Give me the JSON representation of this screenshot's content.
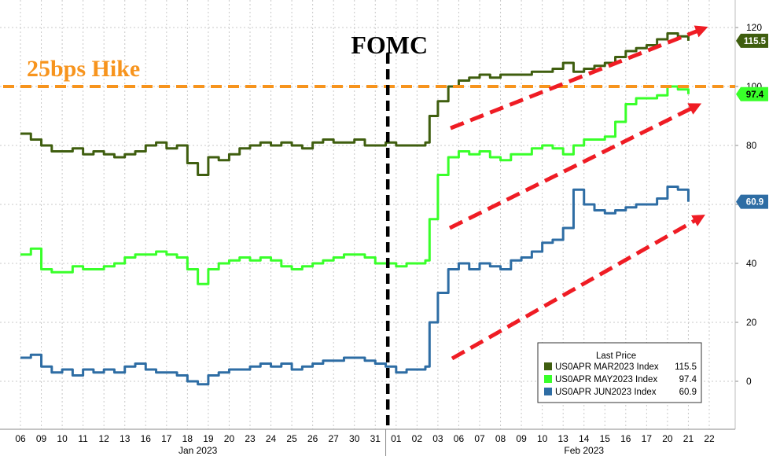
{
  "chart_data": {
    "type": "line",
    "ylim": [
      -12,
      126
    ],
    "y_ticks": [
      0,
      20,
      40,
      60,
      80,
      100,
      120
    ],
    "grid": true,
    "x_day_ticks": [
      "06",
      "09",
      "10",
      "11",
      "12",
      "13",
      "16",
      "17",
      "18",
      "19",
      "20",
      "23",
      "24",
      "25",
      "26",
      "27",
      "30",
      "31",
      "01",
      "02",
      "03",
      "06",
      "07",
      "08",
      "09",
      "10",
      "13",
      "14",
      "15",
      "16",
      "17",
      "20",
      "21",
      "22"
    ],
    "x_month_labels": [
      {
        "text": "Jan 2023",
        "at_index": 8.5
      },
      {
        "text": "Feb 2023",
        "at_index": 27
      }
    ],
    "month_divider_index": 17.5,
    "annotations": {
      "fomc": "FOMC",
      "fomc_index": 17.6,
      "hike_label": "25bps Hike",
      "hike_level": 100
    },
    "legend": {
      "title": "Last Price",
      "placement": "bottom-right"
    },
    "series": [
      {
        "name": "US0APR MAR2023 Index",
        "last": "115.5",
        "color": "#3f5e0f",
        "badge_text_color": "#ffffff",
        "points": [
          [
            0,
            84
          ],
          [
            0.5,
            82
          ],
          [
            1,
            80
          ],
          [
            1.5,
            78
          ],
          [
            2,
            78
          ],
          [
            2.5,
            79
          ],
          [
            3,
            77
          ],
          [
            3.5,
            78
          ],
          [
            4,
            77
          ],
          [
            4.5,
            76
          ],
          [
            5,
            77
          ],
          [
            5.5,
            78
          ],
          [
            6,
            80
          ],
          [
            6.5,
            81
          ],
          [
            7,
            79
          ],
          [
            7.5,
            80
          ],
          [
            8,
            74
          ],
          [
            8.5,
            70
          ],
          [
            9,
            76
          ],
          [
            9.5,
            75
          ],
          [
            10,
            77
          ],
          [
            10.5,
            79
          ],
          [
            11,
            80
          ],
          [
            11.5,
            81
          ],
          [
            12,
            80
          ],
          [
            12.5,
            81
          ],
          [
            13,
            80
          ],
          [
            13.5,
            79
          ],
          [
            14,
            81
          ],
          [
            14.5,
            82
          ],
          [
            15,
            81
          ],
          [
            15.5,
            81
          ],
          [
            16,
            82
          ],
          [
            16.5,
            80
          ],
          [
            17,
            80
          ],
          [
            17.5,
            81
          ],
          [
            18,
            80
          ],
          [
            18.5,
            80
          ],
          [
            19,
            80
          ],
          [
            19.4,
            81
          ],
          [
            19.6,
            90
          ],
          [
            20,
            95
          ],
          [
            20.5,
            100
          ],
          [
            21,
            102
          ],
          [
            21.5,
            103
          ],
          [
            22,
            104
          ],
          [
            22.5,
            103
          ],
          [
            23,
            104
          ],
          [
            23.5,
            104
          ],
          [
            24,
            104
          ],
          [
            24.5,
            105
          ],
          [
            25,
            105
          ],
          [
            25.5,
            106
          ],
          [
            26,
            108
          ],
          [
            26.5,
            105
          ],
          [
            27,
            106
          ],
          [
            27.5,
            107
          ],
          [
            28,
            108
          ],
          [
            28.5,
            110
          ],
          [
            29,
            112
          ],
          [
            29.5,
            113
          ],
          [
            30,
            114
          ],
          [
            30.5,
            116
          ],
          [
            31,
            118
          ],
          [
            31.5,
            117
          ],
          [
            32,
            115.5
          ]
        ]
      },
      {
        "name": "US0APR MAY2023 Index",
        "last": "97.4",
        "color": "#39ff2a",
        "badge_text_color": "#000000",
        "points": [
          [
            0,
            43
          ],
          [
            0.5,
            45
          ],
          [
            1,
            38
          ],
          [
            1.5,
            37
          ],
          [
            2,
            37
          ],
          [
            2.5,
            39
          ],
          [
            3,
            38
          ],
          [
            3.5,
            38
          ],
          [
            4,
            39
          ],
          [
            4.5,
            40
          ],
          [
            5,
            42
          ],
          [
            5.5,
            43
          ],
          [
            6,
            43
          ],
          [
            6.5,
            44
          ],
          [
            7,
            43
          ],
          [
            7.5,
            42
          ],
          [
            8,
            38
          ],
          [
            8.5,
            33
          ],
          [
            9,
            38
          ],
          [
            9.5,
            40
          ],
          [
            10,
            41
          ],
          [
            10.5,
            42
          ],
          [
            11,
            41
          ],
          [
            11.5,
            42
          ],
          [
            12,
            41
          ],
          [
            12.5,
            39
          ],
          [
            13,
            38
          ],
          [
            13.5,
            39
          ],
          [
            14,
            40
          ],
          [
            14.5,
            41
          ],
          [
            15,
            42
          ],
          [
            15.5,
            43
          ],
          [
            16,
            43
          ],
          [
            16.5,
            42
          ],
          [
            17,
            40
          ],
          [
            17.5,
            40
          ],
          [
            18,
            39
          ],
          [
            18.5,
            40
          ],
          [
            19,
            40
          ],
          [
            19.4,
            41
          ],
          [
            19.6,
            55
          ],
          [
            20,
            70
          ],
          [
            20.5,
            76
          ],
          [
            21,
            78
          ],
          [
            21.5,
            77
          ],
          [
            22,
            78
          ],
          [
            22.5,
            76
          ],
          [
            23,
            75
          ],
          [
            23.5,
            77
          ],
          [
            24,
            77
          ],
          [
            24.5,
            79
          ],
          [
            25,
            80
          ],
          [
            25.5,
            79
          ],
          [
            26,
            77
          ],
          [
            26.5,
            80
          ],
          [
            27,
            82
          ],
          [
            27.5,
            82
          ],
          [
            28,
            83
          ],
          [
            28.5,
            88
          ],
          [
            29,
            94
          ],
          [
            29.5,
            96
          ],
          [
            30,
            96
          ],
          [
            30.5,
            97
          ],
          [
            31,
            100
          ],
          [
            31.5,
            99
          ],
          [
            32,
            97.4
          ]
        ]
      },
      {
        "name": "US0APR JUN2023 Index",
        "last": "60.9",
        "color": "#2e6da4",
        "badge_text_color": "#ffffff",
        "points": [
          [
            0,
            8
          ],
          [
            0.5,
            9
          ],
          [
            1,
            5
          ],
          [
            1.5,
            3
          ],
          [
            2,
            4
          ],
          [
            2.5,
            2
          ],
          [
            3,
            4
          ],
          [
            3.5,
            3
          ],
          [
            4,
            4
          ],
          [
            4.5,
            3
          ],
          [
            5,
            5
          ],
          [
            5.5,
            6
          ],
          [
            6,
            4
          ],
          [
            6.5,
            3
          ],
          [
            7,
            3
          ],
          [
            7.5,
            2
          ],
          [
            8,
            0
          ],
          [
            8.5,
            -1
          ],
          [
            9,
            2
          ],
          [
            9.5,
            3
          ],
          [
            10,
            4
          ],
          [
            10.5,
            4
          ],
          [
            11,
            5
          ],
          [
            11.5,
            6
          ],
          [
            12,
            5
          ],
          [
            12.5,
            6
          ],
          [
            13,
            4
          ],
          [
            13.5,
            5
          ],
          [
            14,
            6
          ],
          [
            14.5,
            7
          ],
          [
            15,
            7
          ],
          [
            15.5,
            8
          ],
          [
            16,
            8
          ],
          [
            16.5,
            7
          ],
          [
            17,
            6
          ],
          [
            17.5,
            5
          ],
          [
            18,
            3
          ],
          [
            18.5,
            4
          ],
          [
            19,
            4
          ],
          [
            19.4,
            5
          ],
          [
            19.6,
            20
          ],
          [
            20,
            30
          ],
          [
            20.5,
            38
          ],
          [
            21,
            40
          ],
          [
            21.5,
            38
          ],
          [
            22,
            40
          ],
          [
            22.5,
            39
          ],
          [
            23,
            38
          ],
          [
            23.5,
            41
          ],
          [
            24,
            42
          ],
          [
            24.5,
            44
          ],
          [
            25,
            47
          ],
          [
            25.5,
            48
          ],
          [
            26,
            52
          ],
          [
            26.5,
            65
          ],
          [
            27,
            60
          ],
          [
            27.5,
            58
          ],
          [
            28,
            57
          ],
          [
            28.5,
            58
          ],
          [
            29,
            59
          ],
          [
            29.5,
            60
          ],
          [
            30,
            60
          ],
          [
            30.5,
            62
          ],
          [
            31,
            66
          ],
          [
            31.5,
            65
          ],
          [
            32,
            60.9
          ]
        ]
      }
    ]
  }
}
